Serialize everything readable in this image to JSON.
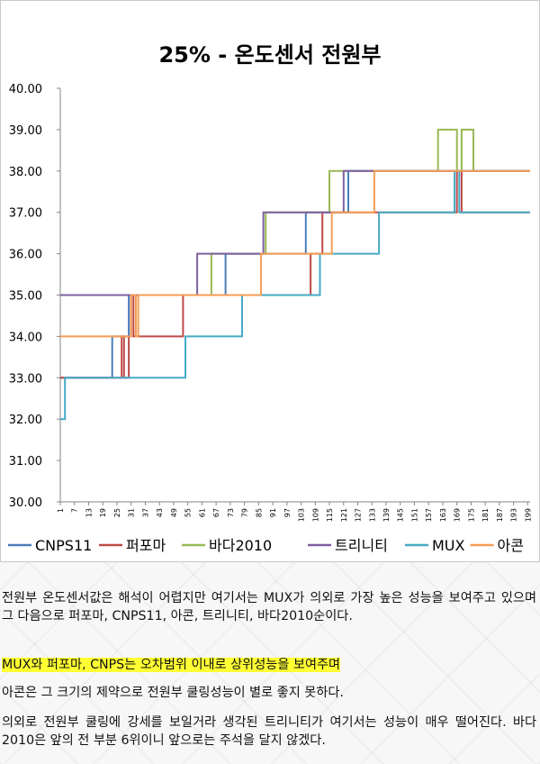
{
  "chart_data": {
    "type": "line",
    "title": "25% - 온도센서 전원부",
    "ylim": [
      30,
      40
    ],
    "yticks": [
      "30.00",
      "31.00",
      "32.00",
      "33.00",
      "34.00",
      "35.00",
      "36.00",
      "37.00",
      "38.00",
      "39.00",
      "40.00"
    ],
    "xlim": [
      1,
      200
    ],
    "xticks": [
      1,
      7,
      13,
      19,
      25,
      31,
      37,
      43,
      49,
      55,
      61,
      67,
      73,
      79,
      85,
      91,
      97,
      103,
      109,
      115,
      121,
      127,
      133,
      139,
      145,
      151,
      157,
      163,
      169,
      175,
      181,
      187,
      193,
      199
    ],
    "legend_position": "bottom",
    "grid": false,
    "series": [
      {
        "name": "CNPS11",
        "color": "#4a7ebb",
        "points": [
          [
            1,
            33
          ],
          [
            23,
            33
          ],
          [
            23,
            34
          ],
          [
            30,
            34
          ],
          [
            30,
            35
          ],
          [
            71,
            35
          ],
          [
            71,
            36
          ],
          [
            105,
            36
          ],
          [
            105,
            37
          ],
          [
            123,
            37
          ],
          [
            123,
            38
          ],
          [
            200,
            38
          ]
        ]
      },
      {
        "name": "퍼포마",
        "color": "#be4b48",
        "points": [
          [
            1,
            33
          ],
          [
            27,
            33
          ],
          [
            27,
            34
          ],
          [
            28,
            34
          ],
          [
            28,
            33
          ],
          [
            30,
            33
          ],
          [
            30,
            34
          ],
          [
            31,
            34
          ],
          [
            31,
            35
          ],
          [
            32,
            35
          ],
          [
            32,
            34
          ],
          [
            53,
            34
          ],
          [
            53,
            35
          ],
          [
            107,
            35
          ],
          [
            107,
            36
          ],
          [
            112,
            36
          ],
          [
            112,
            37
          ],
          [
            169,
            37
          ],
          [
            169,
            38
          ],
          [
            171,
            38
          ],
          [
            171,
            37
          ],
          [
            200,
            37
          ]
        ]
      },
      {
        "name": "바다2010",
        "color": "#98b954",
        "points": [
          [
            1,
            35
          ],
          [
            65,
            35
          ],
          [
            65,
            36
          ],
          [
            88,
            36
          ],
          [
            88,
            37
          ],
          [
            115,
            37
          ],
          [
            115,
            38
          ],
          [
            161,
            38
          ],
          [
            161,
            39
          ],
          [
            169,
            39
          ],
          [
            169,
            38
          ],
          [
            171,
            38
          ],
          [
            171,
            39
          ],
          [
            176,
            39
          ],
          [
            176,
            38
          ],
          [
            200,
            38
          ]
        ]
      },
      {
        "name": "트리니티",
        "color": "#7d60a0",
        "points": [
          [
            1,
            35
          ],
          [
            59,
            35
          ],
          [
            59,
            36
          ],
          [
            87,
            36
          ],
          [
            87,
            37
          ],
          [
            121,
            37
          ],
          [
            121,
            38
          ],
          [
            200,
            38
          ]
        ]
      },
      {
        "name": "MUX",
        "color": "#46aac5",
        "points": [
          [
            1,
            32
          ],
          [
            3,
            32
          ],
          [
            3,
            33
          ],
          [
            54,
            33
          ],
          [
            54,
            34
          ],
          [
            78,
            34
          ],
          [
            78,
            35
          ],
          [
            111,
            35
          ],
          [
            111,
            36
          ],
          [
            136,
            36
          ],
          [
            136,
            37
          ],
          [
            168,
            37
          ],
          [
            168,
            38
          ],
          [
            170,
            38
          ],
          [
            170,
            37
          ],
          [
            200,
            37
          ]
        ]
      },
      {
        "name": "아콘",
        "color": "#f59d56",
        "points": [
          [
            1,
            34
          ],
          [
            31,
            34
          ],
          [
            31,
            35
          ],
          [
            33,
            35
          ],
          [
            33,
            34
          ],
          [
            34,
            34
          ],
          [
            34,
            35
          ],
          [
            86,
            35
          ],
          [
            86,
            36
          ],
          [
            116,
            36
          ],
          [
            116,
            37
          ],
          [
            134,
            37
          ],
          [
            134,
            38
          ],
          [
            200,
            38
          ]
        ]
      }
    ]
  },
  "article": {
    "p1": "전원부 온도센서값은 해석이 어렵지만 여기서는 MUX가 의외로 가장 높은 성능을 보여주고 있으며 그 다음으로 퍼포마, CNPS11, 아콘, 트리니티, 바다2010순이다.",
    "p2": "MUX와 퍼포마, CNPS는 오차범위 이내로 상위성능을 보여주며",
    "p3": "아콘은 그 크기의 제약으로 전원부 쿨링성능이 별로 좋지 못하다.",
    "p4": "의외로 전원부 쿨링에 강세를 보일거라 생각된 트리니티가 여기서는 성능이 매우 떨어진다. 바다2010은 앞의 전 부분 6위이니 앞으로는 주석을 달지 않겠다."
  }
}
